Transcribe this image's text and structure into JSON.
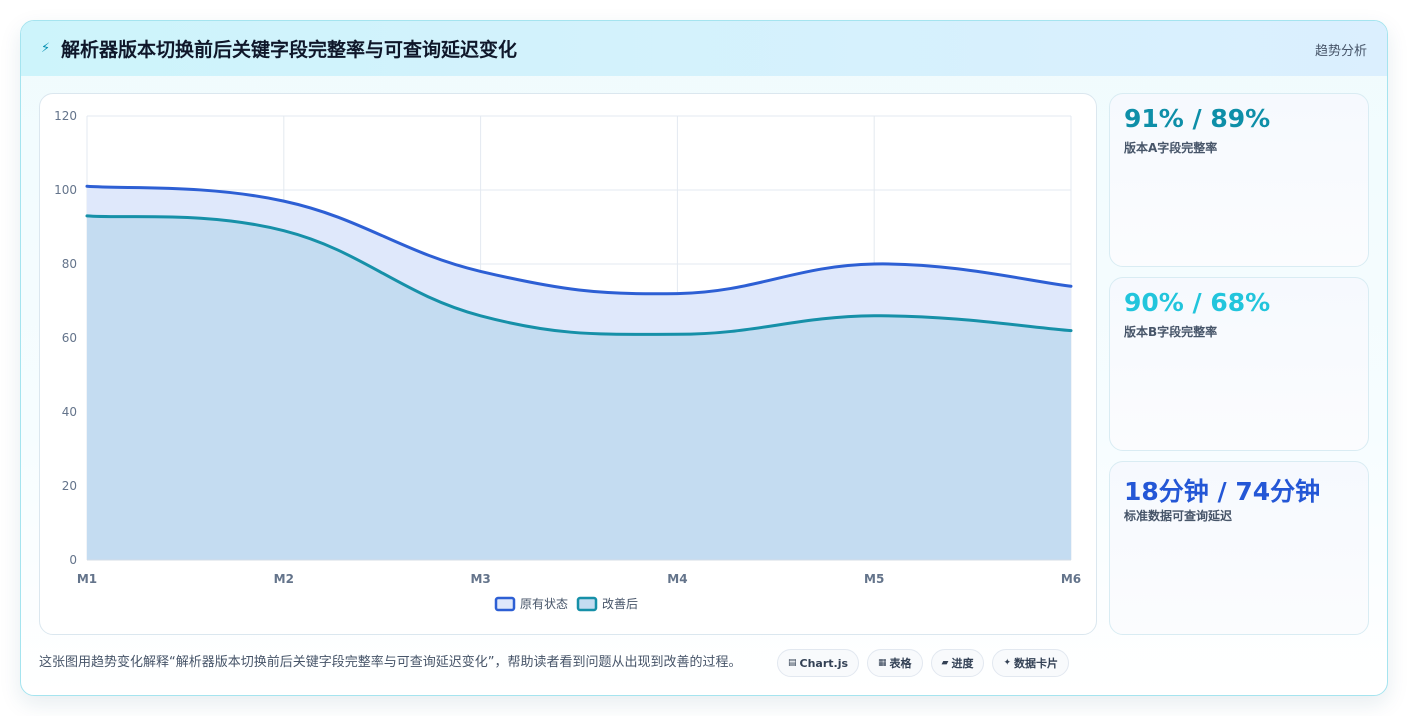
{
  "header": {
    "icon": "lightning-icon",
    "title": "解析器版本切换前后关键字段完整率与可查询延迟变化",
    "tag": "趋势分析"
  },
  "chart_data": {
    "type": "area",
    "categories": [
      "M1",
      "M2",
      "M3",
      "M4",
      "M5",
      "M6"
    ],
    "series": [
      {
        "name": "原有状态",
        "values": [
          101,
          97,
          78,
          72,
          80,
          74
        ],
        "color": "#2d5fd4",
        "fill": "#dfe8fb"
      },
      {
        "name": "改善后",
        "values": [
          93,
          89,
          66,
          61,
          66,
          62
        ],
        "color": "#1690a8",
        "fill": "#c4dcf1"
      }
    ],
    "ylim": [
      0,
      120
    ],
    "yticks": [
      0,
      20,
      40,
      60,
      80,
      100,
      120
    ],
    "grid": true,
    "legend_position": "bottom-center"
  },
  "stats": [
    {
      "value": "91% / 89%",
      "label": "版本A字段完整率",
      "color": "#0e8fa8"
    },
    {
      "value": "90% / 68%",
      "label": "版本B字段完整率",
      "color": "#22c5dc"
    },
    {
      "value": "18分钟 / 74分钟",
      "label": "标准数据可查询延迟",
      "color": "#2457d6"
    }
  ],
  "footer": {
    "description": "这张图用趋势变化解释“解析器版本切换前后关键字段完整率与可查询延迟变化”，帮助读者看到问题从出现到改善的过程。",
    "pills": [
      {
        "icon": "chart-icon",
        "glyph": "▤",
        "label": "Chart.js"
      },
      {
        "icon": "table-icon",
        "glyph": "▦",
        "label": "表格"
      },
      {
        "icon": "progress-icon",
        "glyph": "▰",
        "label": "进度"
      },
      {
        "icon": "sparkle-icon",
        "glyph": "✦",
        "label": "数据卡片"
      }
    ]
  }
}
